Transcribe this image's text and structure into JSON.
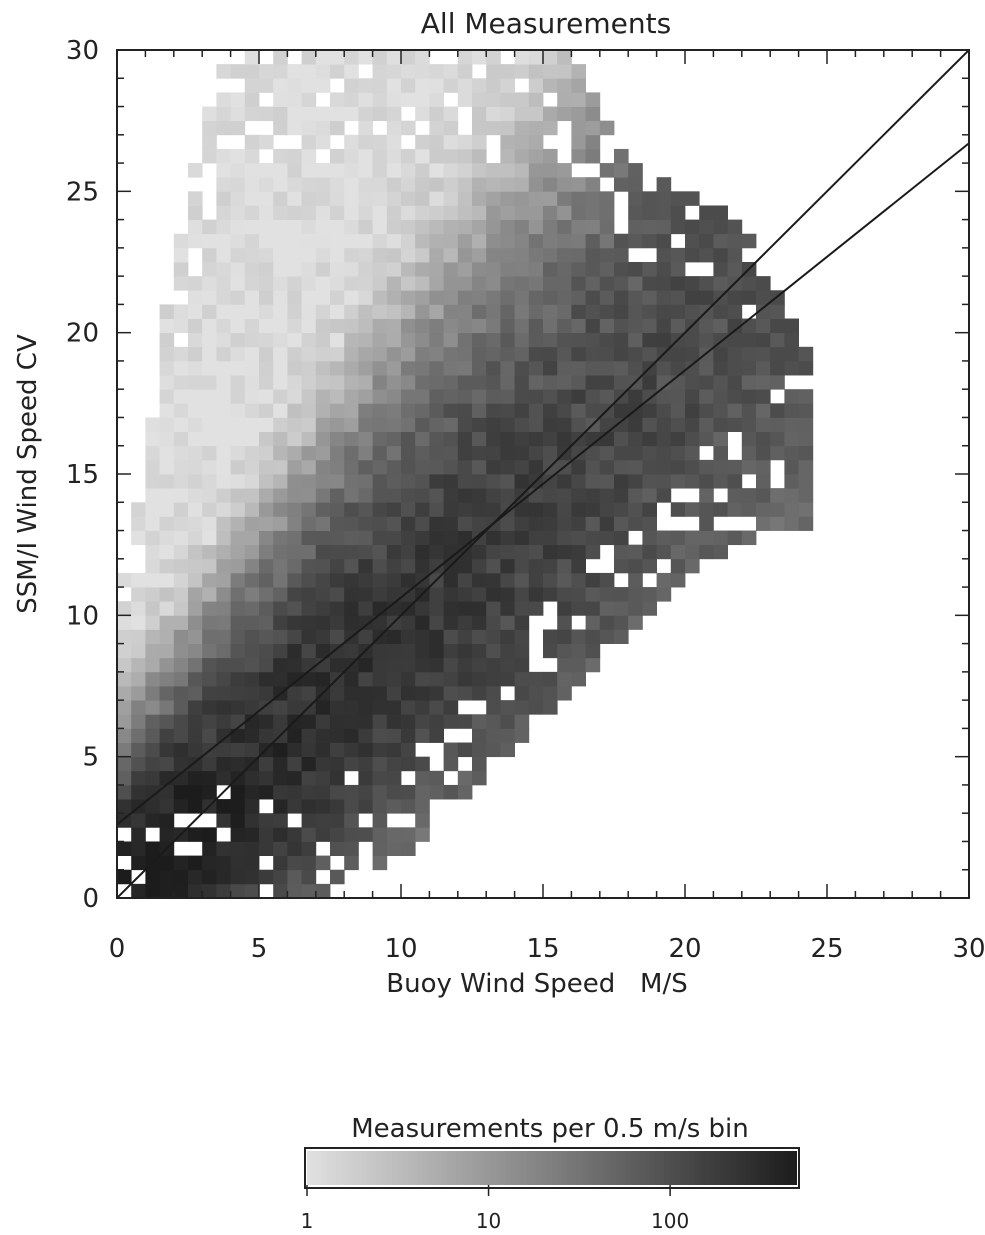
{
  "chart_data": {
    "type": "heatmap",
    "title": "All Measurements",
    "xlabel": "Buoy Wind Speed   M/S",
    "ylabel": "SSM/I Wind Speed CV",
    "xlim": [
      0,
      30
    ],
    "ylim": [
      0,
      30
    ],
    "x_ticks": [
      0,
      5,
      10,
      15,
      20,
      25,
      30
    ],
    "y_ticks": [
      0,
      5,
      10,
      15,
      20,
      25,
      30
    ],
    "bin_size": 0.5,
    "grid": false,
    "color_scale": "log",
    "colorbar": {
      "title": "Measurements per 0.5 m/s bin",
      "range": [
        1,
        500
      ],
      "ticks": [
        1,
        10,
        100
      ],
      "tick_labels": [
        "1",
        "10",
        "100"
      ],
      "low_color": "#ffffff",
      "high_color": "#1c1c1c"
    },
    "density_model": {
      "description": "binned counts concentrated along the 1:1 line",
      "peak_count": 480,
      "ridge": [
        [
          0,
          0
        ],
        [
          5,
          4.5
        ],
        [
          10,
          9.5
        ],
        [
          15,
          13.5
        ],
        [
          20,
          19
        ],
        [
          24,
          22
        ]
      ],
      "upper_envelope": [
        [
          0,
          9.8
        ],
        [
          1,
          16
        ],
        [
          2,
          22.5
        ],
        [
          3,
          27
        ],
        [
          4,
          30
        ],
        [
          16,
          30
        ],
        [
          18,
          26
        ],
        [
          22,
          24
        ],
        [
          24.5,
          19
        ]
      ],
      "lower_envelope": [
        [
          7,
          0
        ],
        [
          10,
          1.5
        ],
        [
          12,
          3.5
        ],
        [
          14,
          5.5
        ],
        [
          16,
          7.5
        ],
        [
          18,
          9.5
        ],
        [
          20,
          11.5
        ],
        [
          22,
          12.5
        ],
        [
          23,
          13
        ]
      ]
    },
    "series": [
      {
        "type": "line",
        "x": [
          0,
          30
        ],
        "y": [
          0,
          30
        ]
      },
      {
        "type": "line",
        "x": [
          0,
          30
        ],
        "y": [
          2.6,
          26.7
        ]
      }
    ]
  }
}
